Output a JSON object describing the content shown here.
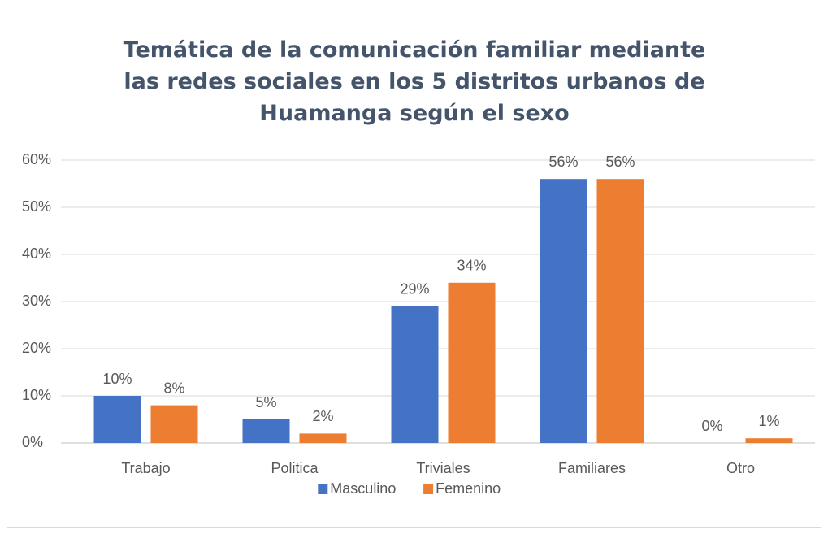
{
  "chart_data": {
    "type": "bar",
    "title": "Temática de la comunicación familiar mediante las redes sociales en los 5 distritos urbanos de Huamanga según el sexo",
    "categories": [
      "Trabajo",
      "Politica",
      "Triviales",
      "Familiares",
      "Otro"
    ],
    "series": [
      {
        "name": "Masculino",
        "color": "#4472c4",
        "values": [
          10,
          5,
          29,
          56,
          0
        ],
        "value_labels": [
          "10%",
          "5%",
          "29%",
          "56%",
          "0%"
        ]
      },
      {
        "name": "Femenino",
        "color": "#ed7d31",
        "values": [
          8,
          2,
          34,
          56,
          1
        ],
        "value_labels": [
          "8%",
          "2%",
          "34%",
          "56%",
          "1%"
        ]
      }
    ],
    "ylim": [
      0,
      60
    ],
    "yticks": [
      {
        "value": 0,
        "label": "0%"
      },
      {
        "value": 10,
        "label": "10%"
      },
      {
        "value": 20,
        "label": "20%"
      },
      {
        "value": 30,
        "label": "30%"
      },
      {
        "value": 40,
        "label": "40%"
      },
      {
        "value": 50,
        "label": "50%"
      },
      {
        "value": 60,
        "label": "60%"
      }
    ],
    "grid": true,
    "legend": "bottom"
  }
}
